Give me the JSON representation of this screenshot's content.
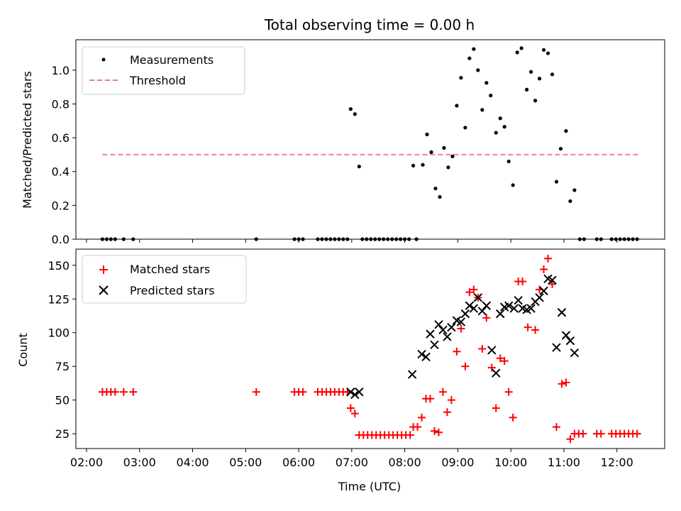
{
  "chart_data": [
    {
      "type": "scatter",
      "title": "Total observing time = 0.00 h",
      "xlabel": "",
      "ylabel": "Matched/Predicted stars",
      "xlim": [
        1.8,
        12.9
      ],
      "ylim": [
        0,
        1.18
      ],
      "yticks": [
        0.0,
        0.2,
        0.4,
        0.6,
        0.8,
        1.0
      ],
      "yticklabels": [
        "0.0",
        "0.2",
        "0.4",
        "0.6",
        "0.8",
        "1.0"
      ],
      "legend_position": "upper-left",
      "legend": [
        "Measurements",
        "Threshold"
      ],
      "threshold": {
        "name": "Threshold",
        "value": 0.5,
        "x_range": [
          2.3,
          12.4
        ],
        "color": "#f08080",
        "style": "dashed"
      },
      "series": [
        {
          "name": "Measurements",
          "marker": "dot",
          "color": "#000000",
          "points": [
            [
              2.3,
              0
            ],
            [
              2.38,
              0
            ],
            [
              2.46,
              0
            ],
            [
              2.54,
              0
            ],
            [
              2.7,
              0
            ],
            [
              2.88,
              0
            ],
            [
              5.2,
              0
            ],
            [
              5.92,
              0
            ],
            [
              6.0,
              0
            ],
            [
              6.08,
              0
            ],
            [
              6.36,
              0
            ],
            [
              6.44,
              0
            ],
            [
              6.52,
              0
            ],
            [
              6.6,
              0
            ],
            [
              6.68,
              0
            ],
            [
              6.76,
              0
            ],
            [
              6.84,
              0
            ],
            [
              6.92,
              0
            ],
            [
              6.98,
              0.77
            ],
            [
              7.06,
              0.74
            ],
            [
              7.14,
              0.43
            ],
            [
              7.2,
              0
            ],
            [
              7.28,
              0
            ],
            [
              7.36,
              0
            ],
            [
              7.44,
              0
            ],
            [
              7.52,
              0
            ],
            [
              7.6,
              0
            ],
            [
              7.68,
              0
            ],
            [
              7.76,
              0
            ],
            [
              7.84,
              0
            ],
            [
              7.92,
              0
            ],
            [
              8.0,
              0
            ],
            [
              8.08,
              0
            ],
            [
              8.22,
              0
            ],
            [
              8.16,
              0.435
            ],
            [
              8.34,
              0.44
            ],
            [
              8.42,
              0.62
            ],
            [
              8.5,
              0.515
            ],
            [
              8.58,
              0.3
            ],
            [
              8.66,
              0.25
            ],
            [
              8.74,
              0.54
            ],
            [
              8.82,
              0.425
            ],
            [
              8.9,
              0.49
            ],
            [
              8.98,
              0.79
            ],
            [
              9.06,
              0.955
            ],
            [
              9.14,
              0.66
            ],
            [
              9.22,
              1.07
            ],
            [
              9.3,
              1.125
            ],
            [
              9.38,
              1.0
            ],
            [
              9.46,
              0.765
            ],
            [
              9.54,
              0.925
            ],
            [
              9.62,
              0.85
            ],
            [
              9.72,
              0.63
            ],
            [
              9.8,
              0.715
            ],
            [
              9.88,
              0.665
            ],
            [
              9.96,
              0.46
            ],
            [
              10.04,
              0.32
            ],
            [
              10.12,
              1.105
            ],
            [
              10.2,
              1.13
            ],
            [
              10.3,
              0.885
            ],
            [
              10.38,
              0.99
            ],
            [
              10.46,
              0.82
            ],
            [
              10.54,
              0.95
            ],
            [
              10.62,
              1.12
            ],
            [
              10.7,
              1.1
            ],
            [
              10.78,
              0.975
            ],
            [
              10.86,
              0.34
            ],
            [
              10.94,
              0.535
            ],
            [
              11.04,
              0.64
            ],
            [
              11.12,
              0.225
            ],
            [
              11.2,
              0.29
            ],
            [
              11.3,
              0
            ],
            [
              11.38,
              0
            ],
            [
              11.62,
              0
            ],
            [
              11.7,
              0
            ],
            [
              11.9,
              0
            ],
            [
              11.98,
              0
            ],
            [
              12.06,
              0
            ],
            [
              12.14,
              0
            ],
            [
              12.22,
              0
            ],
            [
              12.3,
              0
            ],
            [
              12.38,
              0
            ]
          ]
        }
      ]
    },
    {
      "type": "scatter",
      "title": "",
      "xlabel": "Time (UTC)",
      "ylabel": "Count",
      "xlim": [
        1.8,
        12.9
      ],
      "ylim": [
        14,
        162
      ],
      "xticks": [
        2,
        3,
        4,
        5,
        6,
        7,
        8,
        9,
        10,
        11,
        12
      ],
      "xticklabels": [
        "02:00",
        "03:00",
        "04:00",
        "05:00",
        "06:00",
        "07:00",
        "08:00",
        "09:00",
        "10:00",
        "11:00",
        "12:00"
      ],
      "yticks": [
        25,
        50,
        75,
        100,
        125,
        150
      ],
      "yticklabels": [
        "25",
        "50",
        "75",
        "100",
        "125",
        "150"
      ],
      "legend_position": "upper-left",
      "legend": [
        "Matched stars",
        "Predicted stars"
      ],
      "series": [
        {
          "name": "Matched stars",
          "marker": "plus",
          "color": "#ff0000",
          "points": [
            [
              2.3,
              56
            ],
            [
              2.38,
              56
            ],
            [
              2.46,
              56
            ],
            [
              2.54,
              56
            ],
            [
              2.7,
              56
            ],
            [
              2.88,
              56
            ],
            [
              5.2,
              56
            ],
            [
              5.92,
              56
            ],
            [
              6.0,
              56
            ],
            [
              6.08,
              56
            ],
            [
              6.36,
              56
            ],
            [
              6.44,
              56
            ],
            [
              6.52,
              56
            ],
            [
              6.6,
              56
            ],
            [
              6.68,
              56
            ],
            [
              6.76,
              56
            ],
            [
              6.84,
              56
            ],
            [
              6.92,
              56
            ],
            [
              6.98,
              44
            ],
            [
              7.06,
              40
            ],
            [
              7.14,
              24
            ],
            [
              7.22,
              24
            ],
            [
              7.3,
              24
            ],
            [
              7.38,
              24
            ],
            [
              7.46,
              24
            ],
            [
              7.54,
              24
            ],
            [
              7.62,
              24
            ],
            [
              7.7,
              24
            ],
            [
              7.78,
              24
            ],
            [
              7.86,
              24
            ],
            [
              7.94,
              24
            ],
            [
              8.02,
              24
            ],
            [
              8.1,
              24
            ],
            [
              8.16,
              30
            ],
            [
              8.24,
              30
            ],
            [
              8.32,
              37
            ],
            [
              8.4,
              51
            ],
            [
              8.48,
              51
            ],
            [
              8.56,
              27
            ],
            [
              8.64,
              26
            ],
            [
              8.72,
              56
            ],
            [
              8.8,
              41
            ],
            [
              8.88,
              50
            ],
            [
              8.98,
              86
            ],
            [
              9.06,
              103
            ],
            [
              9.14,
              75
            ],
            [
              9.22,
              130
            ],
            [
              9.3,
              132
            ],
            [
              9.38,
              126
            ],
            [
              9.46,
              88
            ],
            [
              9.54,
              111
            ],
            [
              9.64,
              74
            ],
            [
              9.72,
              44
            ],
            [
              9.8,
              81
            ],
            [
              9.88,
              79
            ],
            [
              9.96,
              56
            ],
            [
              10.04,
              37
            ],
            [
              10.14,
              138
            ],
            [
              10.22,
              138
            ],
            [
              10.32,
              104
            ],
            [
              10.46,
              102
            ],
            [
              10.54,
              132
            ],
            [
              10.62,
              147
            ],
            [
              10.7,
              155
            ],
            [
              10.78,
              136
            ],
            [
              10.86,
              30
            ],
            [
              10.96,
              62
            ],
            [
              11.04,
              63
            ],
            [
              11.12,
              21
            ],
            [
              11.2,
              25
            ],
            [
              11.28,
              25
            ],
            [
              11.36,
              25
            ],
            [
              11.62,
              25
            ],
            [
              11.7,
              25
            ],
            [
              11.9,
              25
            ],
            [
              11.98,
              25
            ],
            [
              12.06,
              25
            ],
            [
              12.14,
              25
            ],
            [
              12.22,
              25
            ],
            [
              12.3,
              25
            ],
            [
              12.38,
              25
            ]
          ]
        },
        {
          "name": "Predicted stars",
          "marker": "x",
          "color": "#000000",
          "points": [
            [
              6.98,
              56
            ],
            [
              7.06,
              54
            ],
            [
              7.14,
              56
            ],
            [
              8.14,
              69
            ],
            [
              8.32,
              84
            ],
            [
              8.4,
              82
            ],
            [
              8.48,
              99
            ],
            [
              8.56,
              91
            ],
            [
              8.64,
              106
            ],
            [
              8.72,
              102
            ],
            [
              8.8,
              97
            ],
            [
              8.88,
              104
            ],
            [
              8.98,
              109
            ],
            [
              9.06,
              108
            ],
            [
              9.14,
              114
            ],
            [
              9.22,
              120
            ],
            [
              9.3,
              118
            ],
            [
              9.38,
              126
            ],
            [
              9.46,
              116
            ],
            [
              9.54,
              120
            ],
            [
              9.64,
              87
            ],
            [
              9.72,
              70
            ],
            [
              9.8,
              114
            ],
            [
              9.88,
              119
            ],
            [
              9.96,
              120
            ],
            [
              10.06,
              118
            ],
            [
              10.14,
              124
            ],
            [
              10.22,
              118
            ],
            [
              10.3,
              117
            ],
            [
              10.38,
              118
            ],
            [
              10.46,
              123
            ],
            [
              10.54,
              126
            ],
            [
              10.62,
              131
            ],
            [
              10.7,
              140
            ],
            [
              10.78,
              139
            ],
            [
              10.86,
              89
            ],
            [
              10.96,
              115
            ],
            [
              11.04,
              98
            ],
            [
              11.12,
              94
            ],
            [
              11.2,
              85
            ]
          ]
        }
      ]
    }
  ]
}
